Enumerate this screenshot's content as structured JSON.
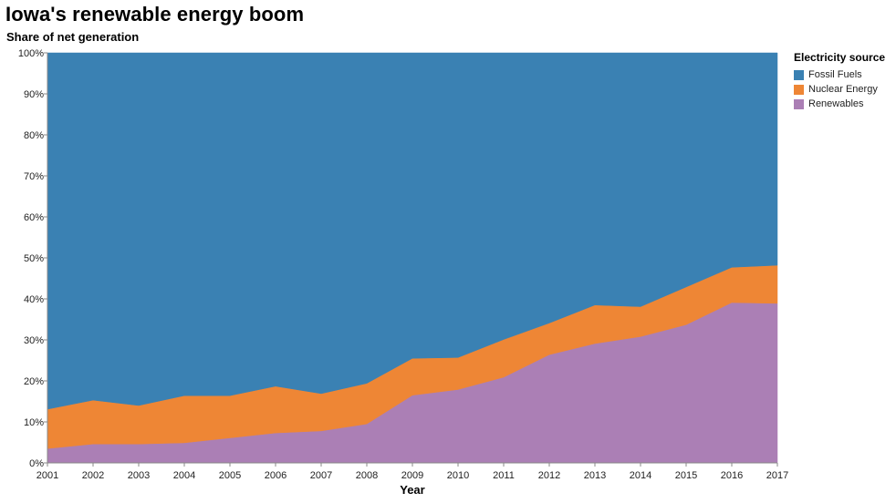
{
  "header": {
    "title": "Iowa's renewable energy boom",
    "subtitle": "Share of net generation"
  },
  "chart_data": {
    "type": "area",
    "stacked": true,
    "normalized": true,
    "title": "Iowa's renewable energy boom",
    "subtitle": "Share of net generation",
    "xlabel": "Year",
    "ylabel": "",
    "x": [
      2001,
      2002,
      2003,
      2004,
      2005,
      2006,
      2007,
      2008,
      2009,
      2010,
      2011,
      2012,
      2013,
      2014,
      2015,
      2016,
      2017
    ],
    "ylim": [
      0,
      100
    ],
    "y_ticks": [
      "0%",
      "10%",
      "20%",
      "30%",
      "40%",
      "50%",
      "60%",
      "70%",
      "80%",
      "90%",
      "100%"
    ],
    "grid": false,
    "legend": {
      "title": "Electricity source",
      "placement": "right"
    },
    "series": [
      {
        "name": "Renewables",
        "color": "#ab7fb5",
        "values": [
          3.5,
          4.6,
          4.6,
          4.9,
          6.1,
          7.3,
          7.8,
          9.5,
          16.5,
          17.9,
          20.9,
          26.4,
          29.1,
          30.8,
          33.7,
          39.1,
          38.9
        ]
      },
      {
        "name": "Nuclear Energy",
        "color": "#ee8635",
        "values": [
          9.6,
          10.7,
          9.4,
          11.5,
          10.3,
          11.4,
          9.1,
          9.9,
          9.0,
          7.8,
          9.2,
          7.7,
          9.4,
          7.3,
          9.2,
          8.6,
          9.3
        ]
      },
      {
        "name": "Fossil Fuels",
        "color": "#3a81b3",
        "values": [
          86.9,
          84.7,
          86.0,
          83.6,
          83.6,
          81.3,
          83.1,
          80.6,
          74.5,
          74.3,
          69.9,
          65.9,
          61.5,
          61.9,
          57.1,
          52.3,
          51.8
        ]
      }
    ]
  },
  "legend_order": [
    "Fossil Fuels",
    "Nuclear Energy",
    "Renewables"
  ]
}
